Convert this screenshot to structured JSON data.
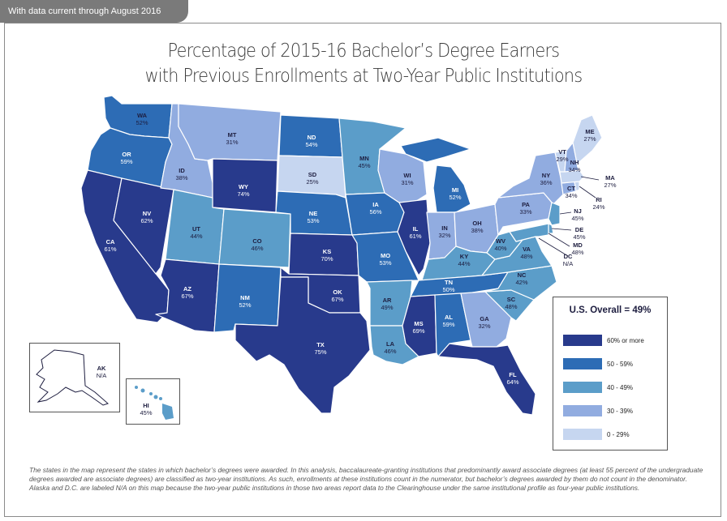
{
  "header_tab": "With data current through August 2016",
  "title_line1": "Percentage of 2015-16 Bachelor’s Degree Earners",
  "title_line2": "with Previous Enrollments at Two-Year Public Institutions",
  "legend": {
    "title": "U.S. Overall = 49%",
    "items": [
      {
        "label": "60% or more",
        "color": "#283a8c"
      },
      {
        "label": "50 - 59%",
        "color": "#2d6cb5"
      },
      {
        "label": "40 - 49%",
        "color": "#5b9dc9"
      },
      {
        "label": "30 - 39%",
        "color": "#91ace0"
      },
      {
        "label": "0 - 29%",
        "color": "#c6d6f0"
      }
    ]
  },
  "states": {
    "WA": {
      "abbr": "WA",
      "value": "52%"
    },
    "OR": {
      "abbr": "OR",
      "value": "59%"
    },
    "CA": {
      "abbr": "CA",
      "value": "61%"
    },
    "NV": {
      "abbr": "NV",
      "value": "62%"
    },
    "ID": {
      "abbr": "ID",
      "value": "38%"
    },
    "MT": {
      "abbr": "MT",
      "value": "31%"
    },
    "WY": {
      "abbr": "WY",
      "value": "74%"
    },
    "UT": {
      "abbr": "UT",
      "value": "44%"
    },
    "AZ": {
      "abbr": "AZ",
      "value": "67%"
    },
    "CO": {
      "abbr": "CO",
      "value": "46%"
    },
    "NM": {
      "abbr": "NM",
      "value": "52%"
    },
    "ND": {
      "abbr": "ND",
      "value": "54%"
    },
    "SD": {
      "abbr": "SD",
      "value": "25%"
    },
    "NE": {
      "abbr": "NE",
      "value": "53%"
    },
    "KS": {
      "abbr": "KS",
      "value": "70%"
    },
    "OK": {
      "abbr": "OK",
      "value": "67%"
    },
    "TX": {
      "abbr": "TX",
      "value": "75%"
    },
    "MN": {
      "abbr": "MN",
      "value": "45%"
    },
    "IA": {
      "abbr": "IA",
      "value": "56%"
    },
    "MO": {
      "abbr": "MO",
      "value": "53%"
    },
    "AR": {
      "abbr": "AR",
      "value": "49%"
    },
    "LA": {
      "abbr": "LA",
      "value": "46%"
    },
    "WI": {
      "abbr": "WI",
      "value": "31%"
    },
    "IL": {
      "abbr": "IL",
      "value": "61%"
    },
    "MI": {
      "abbr": "MI",
      "value": "52%"
    },
    "IN": {
      "abbr": "IN",
      "value": "32%"
    },
    "OH": {
      "abbr": "OH",
      "value": "38%"
    },
    "KY": {
      "abbr": "KY",
      "value": "44%"
    },
    "TN": {
      "abbr": "TN",
      "value": "50%"
    },
    "MS": {
      "abbr": "MS",
      "value": "69%"
    },
    "AL": {
      "abbr": "AL",
      "value": "59%"
    },
    "GA": {
      "abbr": "GA",
      "value": "32%"
    },
    "FL": {
      "abbr": "FL",
      "value": "64%"
    },
    "SC": {
      "abbr": "SC",
      "value": "48%"
    },
    "NC": {
      "abbr": "NC",
      "value": "42%"
    },
    "VA": {
      "abbr": "VA",
      "value": "48%"
    },
    "WV": {
      "abbr": "WV",
      "value": "40%"
    },
    "PA": {
      "abbr": "PA",
      "value": "33%"
    },
    "NY": {
      "abbr": "NY",
      "value": "36%"
    },
    "ME": {
      "abbr": "ME",
      "value": "27%"
    },
    "VT": {
      "abbr": "VT",
      "value": "29%"
    },
    "NH": {
      "abbr": "NH",
      "value": "34%"
    },
    "MA": {
      "abbr": "MA",
      "value": "27%"
    },
    "CT": {
      "abbr": "CT",
      "value": "34%"
    },
    "RI": {
      "abbr": "RI",
      "value": "24%"
    },
    "NJ": {
      "abbr": "NJ",
      "value": "45%"
    },
    "DE": {
      "abbr": "DE",
      "value": "45%"
    },
    "MD": {
      "abbr": "MD",
      "value": "48%"
    },
    "DC": {
      "abbr": "DC",
      "value": "N/A"
    },
    "AK": {
      "abbr": "AK",
      "value": "N/A"
    },
    "HI": {
      "abbr": "HI",
      "value": "45%"
    }
  },
  "footnote": "The states in the map represent the states in which bachelor’s degrees were awarded. In this analysis, baccalaureate-granting institutions that predominantly award associate degrees (at least 55 percent of the undergraduate degrees awarded are associate degrees) are classified as two-year institutions. As such, enrollments at these institutions count in the numerator, but bachelor’s degrees awarded by them do not count in the denominator. Alaska and D.C. are labeled N/A on this map because the two-year public institutions in those two areas report data to the Clearinghouse under the same institutional profile as four-year public institutions."
}
